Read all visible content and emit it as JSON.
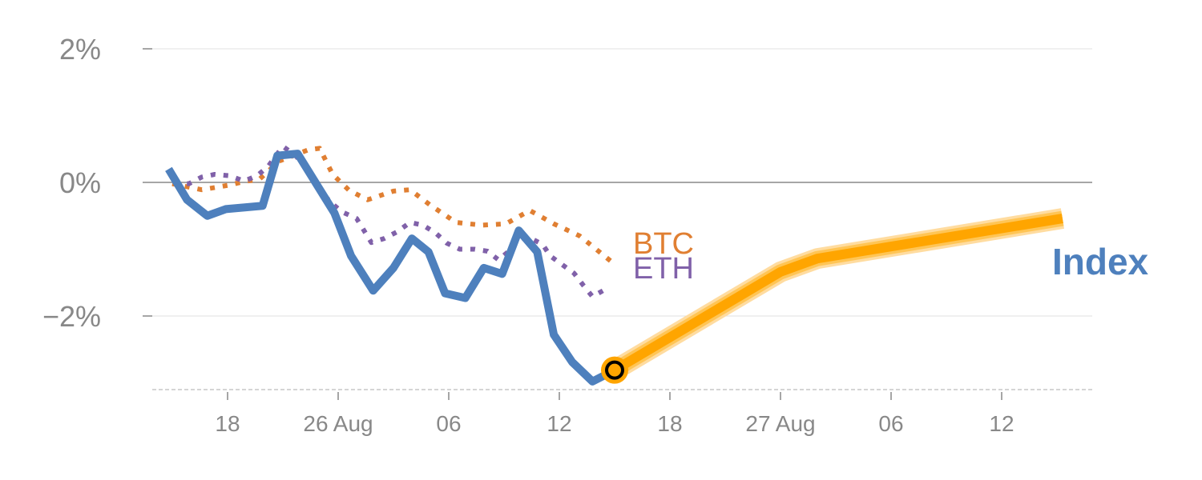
{
  "chart_data": {
    "type": "line",
    "title": "",
    "xlabel": "",
    "ylabel": "",
    "ylim": [
      -3.1,
      2.0
    ],
    "xlim": [
      -0.5,
      49
    ],
    "yticks": [
      {
        "value": 2,
        "label": "2%"
      },
      {
        "value": 0,
        "label": "0%"
      },
      {
        "value": -2,
        "label": "−2%"
      }
    ],
    "xticks": [
      {
        "value": 3,
        "label": "18"
      },
      {
        "value": 9,
        "label": "26 Aug"
      },
      {
        "value": 15,
        "label": "06"
      },
      {
        "value": 21,
        "label": "12"
      },
      {
        "value": 27,
        "label": "18"
      },
      {
        "value": 33,
        "label": "27 Aug"
      },
      {
        "value": 39,
        "label": "06"
      },
      {
        "value": 45,
        "label": "12"
      }
    ],
    "grid": true,
    "series": [
      {
        "name": "BTC",
        "label": "BTC",
        "color": "#e07f32",
        "style": "dotted",
        "x": [
          0,
          1.6,
          3.1,
          4,
          4.7,
          5.8,
          7.4,
          8,
          8.7,
          9.6,
          10.6,
          12,
          12.9,
          14,
          15.4,
          16.8,
          18.1,
          19.4,
          20.7,
          22.1,
          23.8
        ],
        "y": [
          -0.02,
          -0.11,
          -0.04,
          0.02,
          0.04,
          0.32,
          0.49,
          0.51,
          0.12,
          -0.12,
          -0.26,
          -0.13,
          -0.11,
          -0.34,
          -0.6,
          -0.64,
          -0.62,
          -0.42,
          -0.62,
          -0.8,
          -1.18
        ]
      },
      {
        "name": "ETH",
        "label": "ETH",
        "color": "#8061a9",
        "style": "dotted",
        "x": [
          0.1,
          0.9,
          1.6,
          2.3,
          3.1,
          3.9,
          4.6,
          5.2,
          6,
          6.7,
          7.2,
          8.1,
          8.6,
          9.2,
          10,
          10.4,
          10.8,
          11.5,
          12.2,
          12.9,
          13.6,
          14.3,
          14.9,
          15.6,
          16.4,
          17.1,
          17.7,
          18.3,
          18.8,
          19.4,
          20.1,
          20.5,
          21.2,
          21.8,
          22.3,
          22.8,
          23.5
        ],
        "y": [
          0,
          -0.02,
          0.08,
          0.12,
          0.1,
          0.02,
          0.1,
          0.24,
          0.54,
          0.4,
          0.22,
          -0.14,
          -0.3,
          -0.44,
          -0.54,
          -0.72,
          -0.9,
          -0.84,
          -0.74,
          -0.6,
          -0.64,
          -0.76,
          -0.91,
          -1,
          -1,
          -1.03,
          -1.16,
          -1.02,
          -0.84,
          -0.83,
          -0.93,
          -1.1,
          -1.24,
          -1.36,
          -1.54,
          -1.71,
          -1.6
        ]
      },
      {
        "name": "Index",
        "label": "Index",
        "color": "#4e80bd",
        "style": "solid",
        "x": [
          -0.2,
          0.8,
          1.9,
          2.9,
          4.9,
          5.7,
          6.8,
          8.8,
          9.7,
          10.9,
          12,
          13,
          13.9,
          14.8,
          15.9,
          16.9,
          17.9,
          18.8,
          19.8,
          20.7,
          21.7,
          22.8,
          24
        ],
        "y": [
          0.2,
          -0.26,
          -0.5,
          -0.4,
          -0.35,
          0.4,
          0.43,
          -0.46,
          -1.1,
          -1.62,
          -1.28,
          -0.84,
          -1.04,
          -1.66,
          -1.73,
          -1.28,
          -1.37,
          -0.72,
          -1.04,
          -2.28,
          -2.69,
          -2.98,
          -2.81
        ]
      },
      {
        "name": "Index forecast",
        "color": "#ffa500",
        "style": "thick",
        "x": [
          24,
          33,
          35,
          48.3
        ],
        "y": [
          -2.81,
          -1.34,
          -1.14,
          -0.54
        ]
      }
    ],
    "marker": {
      "x": 24,
      "y": -2.81
    }
  }
}
